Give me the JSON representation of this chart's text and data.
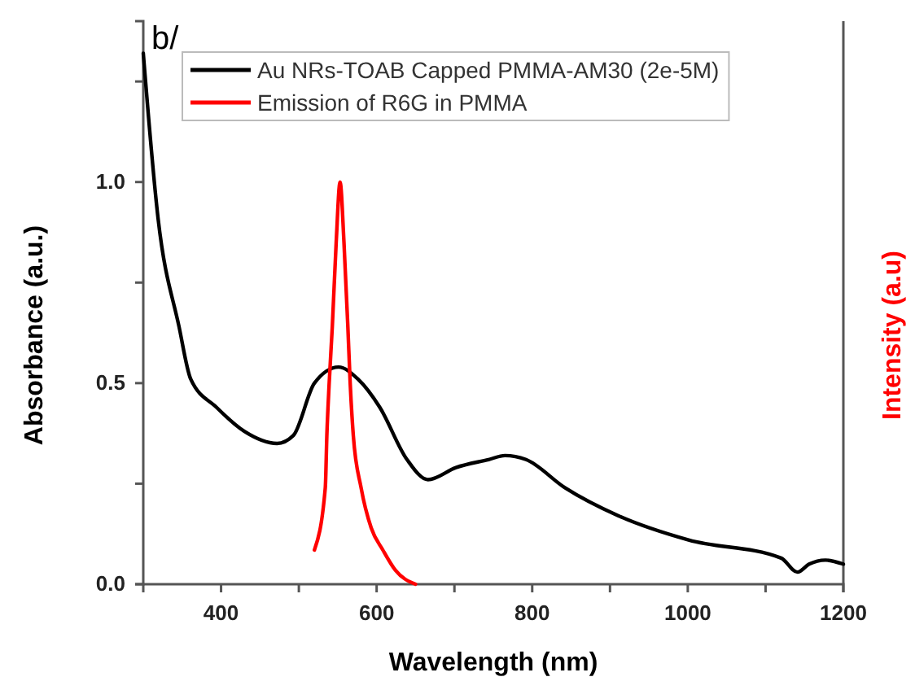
{
  "chart_data": {
    "type": "line",
    "xlabel": "Wavelength (nm)",
    "ylabel": "Absorbance (a.u.)",
    "y2label": "Intensity (a.u)",
    "annotations": [
      "b/"
    ],
    "xlim": [
      300,
      1200
    ],
    "xticks": [
      400,
      {
        "value": 500,
        "label": null
      },
      600,
      {
        "value": 700,
        "label": null
      },
      800,
      {
        "value": 900,
        "label": null
      },
      1000,
      {
        "value": 1100,
        "label": null
      },
      1200
    ],
    "ylim": [
      0,
      1.4
    ],
    "yticks": [
      {
        "value": 0,
        "label": "0.0"
      },
      {
        "value": 0.25,
        "label": null
      },
      {
        "value": 0.5,
        "label": "0.5"
      },
      {
        "value": 0.75,
        "label": null
      },
      {
        "value": 1,
        "label": "1.0"
      },
      {
        "value": 1.25,
        "label": null
      }
    ],
    "grid": false,
    "legend": "top",
    "marker": "none",
    "line_style": "solid",
    "series": [
      {
        "name": "Au NRs-TOAB Capped PMMA-AM30 (2e-5M)",
        "color": "#000000",
        "x": [
          300,
          319,
          346,
          361,
          394,
          430,
          472,
          493,
          520,
          551,
          576,
          604,
          639,
          666,
          702,
          744,
          765,
          792,
          842,
          911,
          1001,
          1120,
          1141,
          1156,
          1177,
          1200
        ],
        "values": [
          1.32,
          0.91,
          0.64,
          0.51,
          0.44,
          0.38,
          0.35,
          0.37,
          0.5,
          0.54,
          0.51,
          0.44,
          0.31,
          0.26,
          0.29,
          0.31,
          0.32,
          0.31,
          0.24,
          0.17,
          0.11,
          0.065,
          0.03,
          0.05,
          0.06,
          0.05
        ]
      },
      {
        "name": "Emission of R6G in PMMA",
        "color": "#ff0000",
        "x": [
          520,
          534,
          536,
          539,
          543,
          548,
          553,
          558,
          563,
          566,
          570,
          580,
          593,
          608,
          624,
          650
        ],
        "values": [
          0.085,
          0.24,
          0.37,
          0.5,
          0.64,
          0.85,
          1.0,
          0.85,
          0.64,
          0.5,
          0.37,
          0.24,
          0.14,
          0.085,
          0.035,
          0
        ]
      }
    ]
  }
}
